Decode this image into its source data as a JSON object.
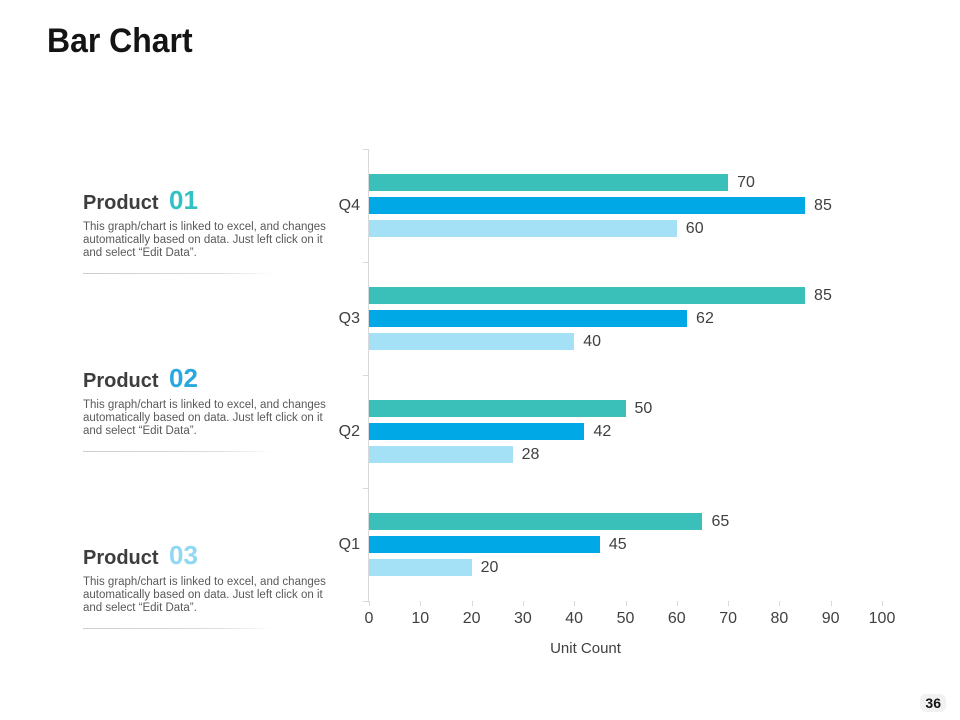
{
  "slide": {
    "title": "Bar Chart",
    "page_number": "36"
  },
  "products": [
    {
      "label": "Product",
      "number": "01",
      "number_color": "#33c1c4",
      "description": "This graph/chart is linked to excel, and changes automatically based on data. Just left click on it and select “Edit Data”."
    },
    {
      "label": "Product",
      "number": "02",
      "number_color": "#29a8e0",
      "description": "This graph/chart is linked to excel, and changes automatically based on data. Just left click on it and select “Edit Data”."
    },
    {
      "label": "Product",
      "number": "03",
      "number_color": "#8fd8f2",
      "description": "This graph/chart is linked to excel, and changes automatically based on data. Just left click on it and select “Edit Data”."
    }
  ],
  "chart_data": {
    "type": "bar",
    "orientation": "horizontal",
    "title": "",
    "xlabel": "Unit Count",
    "ylabel": "",
    "categories": [
      "Q4",
      "Q3",
      "Q2",
      "Q1"
    ],
    "series": [
      {
        "name": "Product 01",
        "color": "#3ac0b8",
        "values": [
          70,
          85,
          50,
          65
        ]
      },
      {
        "name": "Product 02",
        "color": "#00a8e6",
        "values": [
          85,
          62,
          42,
          45
        ]
      },
      {
        "name": "Product 03",
        "color": "#a4e0f6",
        "values": [
          60,
          40,
          28,
          20
        ]
      }
    ],
    "xlim": [
      0,
      100
    ],
    "x_ticks": [
      0,
      10,
      20,
      30,
      40,
      50,
      60,
      70,
      80,
      90,
      100
    ],
    "bar_value_labels": true,
    "grid": false,
    "legend": "none",
    "axis_color": "#d9d9d9",
    "label_color": "#404040"
  }
}
